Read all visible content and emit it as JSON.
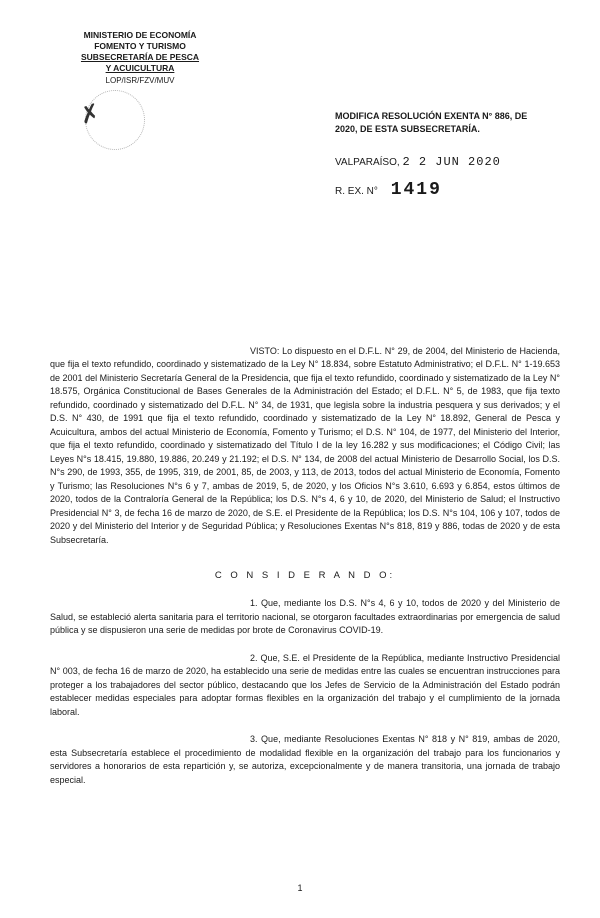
{
  "header": {
    "line1": "MINISTERIO DE ECONOMÍA",
    "line2": "FOMENTO Y TURISMO",
    "line3": "SUBSECRETARÍA DE PESCA",
    "line4": "Y ACUICULTURA",
    "ref": "LOP/ISR/FZV/MUV"
  },
  "title": {
    "line1": "MODIFICA RESOLUCIÓN EXENTA N° 886, DE",
    "line2": "2020, DE ESTA SUBSECRETARÍA."
  },
  "location": "VALPARAÍSO,",
  "date": "2 2 JUN 2020",
  "rex_label": "R. EX. N°",
  "rex_num": "1419",
  "visto_label": "VISTO:",
  "visto_body": "Lo dispuesto en el D.F.L. N° 29, de 2004, del Ministerio de Hacienda, que fija el texto refundido, coordinado y sistematizado de la Ley N° 18.834, sobre Estatuto Administrativo; el D.F.L. N° 1-19.653 de 2001 del Ministerio Secretaría General de la Presidencia, que fija el texto refundido, coordinado y sistematizado de la Ley N° 18.575, Orgánica Constitucional de Bases Generales de la Administración del Estado; el D.F.L. N° 5, de 1983, que fija texto refundido, coordinado y sistematizado del D.F.L. N° 34, de 1931, que legisla sobre la industria pesquera y sus derivados; y el D.S. N° 430, de 1991 que fija el texto refundido, coordinado y sistematizado de la Ley N° 18.892, General de Pesca y Acuicultura, ambos del actual Ministerio de Economía, Fomento y Turismo; el D.S. N° 104, de 1977, del Ministerio del Interior, que fija el texto refundido, coordinado y sistematizado del Título I de la ley 16.282 y sus modificaciones; el Código Civil; las Leyes N°s 18.415, 19.880, 19.886, 20.249 y 21.192; el D.S. N° 134, de 2008 del actual Ministerio de Desarrollo Social, los D.S. N°s 290, de 1993, 355, de 1995, 319, de 2001, 85, de 2003, y 113, de 2013, todos del actual Ministerio de Economía, Fomento y Turismo; las Resoluciones N°s 6 y 7, ambas de 2019, 5, de 2020, y los Oficios N°s 3.610, 6.693 y 6.854, estos últimos de 2020, todos de la Contraloría General de la República; los D.S. N°s 4, 6 y 10, de 2020, del Ministerio de Salud; el Instructivo Presidencial N° 3, de fecha 16 de marzo de 2020, de S.E. el Presidente de la República; los D.S. N°s 104, 106 y 107, todos de 2020 y del Ministerio del Interior y de Seguridad Pública; y Resoluciones Exentas N°s 818, 819 y 886, todas de 2020 y de esta Subsecretaría.",
  "considerando_label": "C O N S I D E R A N D O:",
  "cons1": "1.    Que, mediante los D.S. N°s 4, 6 y 10, todos de 2020 y del Ministerio de Salud, se estableció alerta sanitaria para el territorio nacional, se otorgaron facultades extraordinarias por emergencia de salud pública y se dispusieron una serie de medidas por brote de Coronavirus COVID-19.",
  "cons2": "2.    Que, S.E. el Presidente de la República, mediante Instructivo Presidencial N° 003, de fecha 16 de marzo de 2020, ha establecido una serie de medidas entre las cuales se encuentran instrucciones para proteger a los trabajadores del sector público, destacando que los Jefes de Servicio de la Administración del Estado podrán establecer medidas especiales para adoptar formas flexibles en la organización del trabajo y el cumplimiento de la jornada laboral.",
  "cons3": "3.    Que, mediante Resoluciones Exentas N° 818 y N° 819, ambas de 2020, esta Subsecretaría establece el procedimiento de modalidad flexible en la organización del trabajo para los funcionarios y servidores a honorarios de esta repartición y, se autoriza, excepcionalmente y de manera transitoria, una jornada de trabajo especial.",
  "pagenum": "1"
}
